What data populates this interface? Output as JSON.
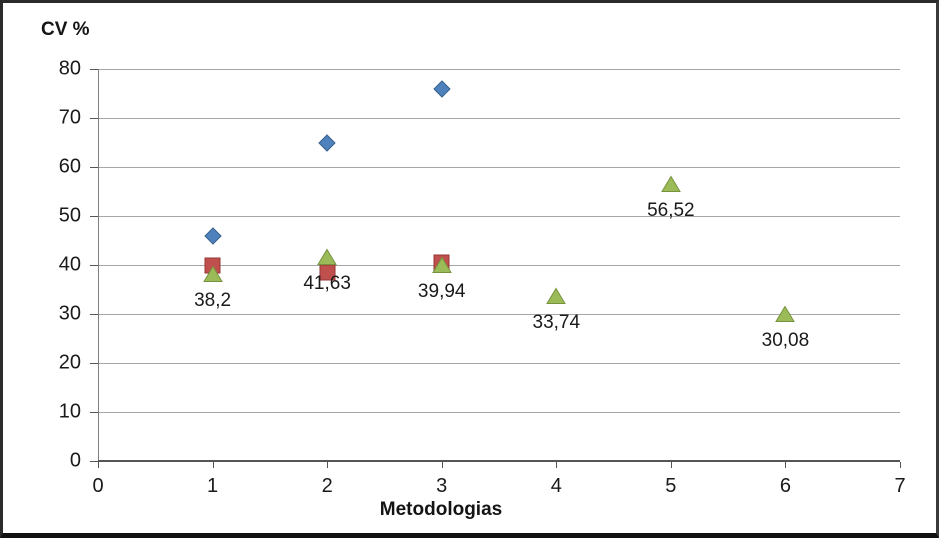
{
  "chart": {
    "y_axis_title": "CV %",
    "x_axis_title": "Metodologias"
  },
  "chart_data": {
    "type": "scatter",
    "title": "",
    "xlabel": "Metodologias",
    "ylabel": "CV %",
    "xlim": [
      0,
      7
    ],
    "ylim": [
      0,
      80
    ],
    "x_ticks": [
      0,
      1,
      2,
      3,
      4,
      5,
      6,
      7
    ],
    "y_ticks": [
      0,
      10,
      20,
      30,
      40,
      50,
      60,
      70,
      80
    ],
    "grid": "horizontal-only",
    "legend": "none",
    "decimal_separator": ",",
    "series": [
      {
        "name": "series-blue-diamond",
        "marker": "diamond",
        "fill": "#4F81BD",
        "stroke": "#38618C",
        "points": [
          {
            "x": 1,
            "y": 46
          },
          {
            "x": 2,
            "y": 65
          },
          {
            "x": 3,
            "y": 76
          }
        ]
      },
      {
        "name": "series-red-square",
        "marker": "square",
        "fill": "#C0504D",
        "stroke": "#963634",
        "points": [
          {
            "x": 1,
            "y": 39.9
          },
          {
            "x": 2,
            "y": 38.5
          },
          {
            "x": 3,
            "y": 40.5
          }
        ]
      },
      {
        "name": "series-green-triangle",
        "marker": "triangle",
        "fill": "#9BBB59",
        "stroke": "#76923C",
        "points": [
          {
            "x": 1,
            "y": 38.2,
            "label": "38,2"
          },
          {
            "x": 2,
            "y": 41.63,
            "label": "41,63"
          },
          {
            "x": 3,
            "y": 39.94,
            "label": "39,94"
          },
          {
            "x": 4,
            "y": 33.74,
            "label": "33,74"
          },
          {
            "x": 5,
            "y": 56.52,
            "label": "56,52"
          },
          {
            "x": 6,
            "y": 30.08,
            "label": "30,08"
          }
        ]
      }
    ]
  }
}
